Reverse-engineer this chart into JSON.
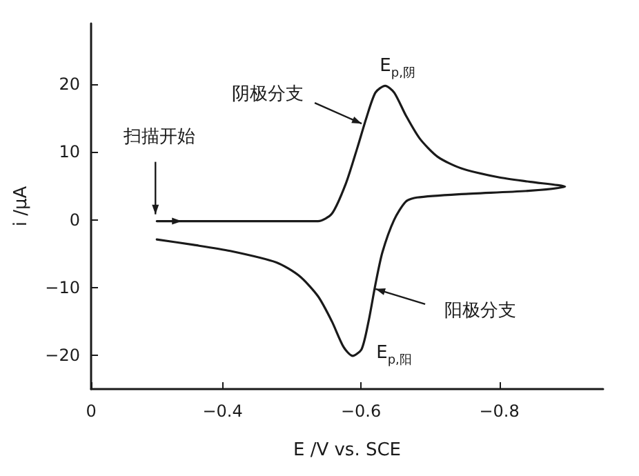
{
  "chart_data": {
    "type": "line",
    "xlabel": "E /V vs. SCE",
    "ylabel": "i /μA",
    "xlim": [
      -0.21,
      -0.95
    ],
    "xticks": [
      {
        "value": -0.21,
        "label": "0"
      },
      -0.4,
      -0.6,
      -0.8
    ],
    "ylim": [
      -25,
      29
    ],
    "yticks": [
      -20,
      -10,
      0,
      10,
      20
    ],
    "series": [
      {
        "color": "#1a1a1a",
        "x": [
          -0.305,
          -0.4,
          -0.5,
          -0.538,
          -0.558,
          -0.578,
          -0.595,
          -0.608,
          -0.621,
          -0.635,
          -0.648,
          -0.665,
          -0.685,
          -0.711,
          -0.745,
          -0.798,
          -0.845,
          -0.895,
          -0.845,
          -0.745,
          -0.681,
          -0.665,
          -0.648,
          -0.631,
          -0.621,
          -0.611,
          -0.601,
          -0.588,
          -0.575,
          -0.558,
          -0.538,
          -0.511,
          -0.478,
          -0.411,
          -0.358,
          -0.305
        ],
        "values": [
          -0.2,
          -0.2,
          -0.2,
          -0.2,
          0.9,
          5.3,
          10.7,
          15.1,
          18.8,
          19.8,
          18.8,
          15.4,
          12.0,
          9.3,
          7.6,
          6.3,
          5.6,
          4.9,
          4.3,
          3.8,
          3.3,
          2.7,
          0,
          -4.8,
          -9.5,
          -15,
          -19.1,
          -20.1,
          -18.8,
          -15,
          -11.3,
          -8.3,
          -6.3,
          -4.6,
          -3.7,
          -2.9
        ]
      }
    ],
    "marker": "none",
    "line_style": "solid",
    "annotations": [
      {
        "text": "扫描开始",
        "x": -0.305,
        "y": 0
      },
      {
        "text": "阴极分支",
        "x": -0.605,
        "y": 14
      },
      {
        "text": "阳极分支",
        "x": -0.617,
        "y": -10
      },
      {
        "text": "E$_{p,阴}$",
        "x": -0.635,
        "y": 19.8
      },
      {
        "text": "E$_{p,阳}$",
        "x": -0.588,
        "y": -20.1
      }
    ]
  }
}
